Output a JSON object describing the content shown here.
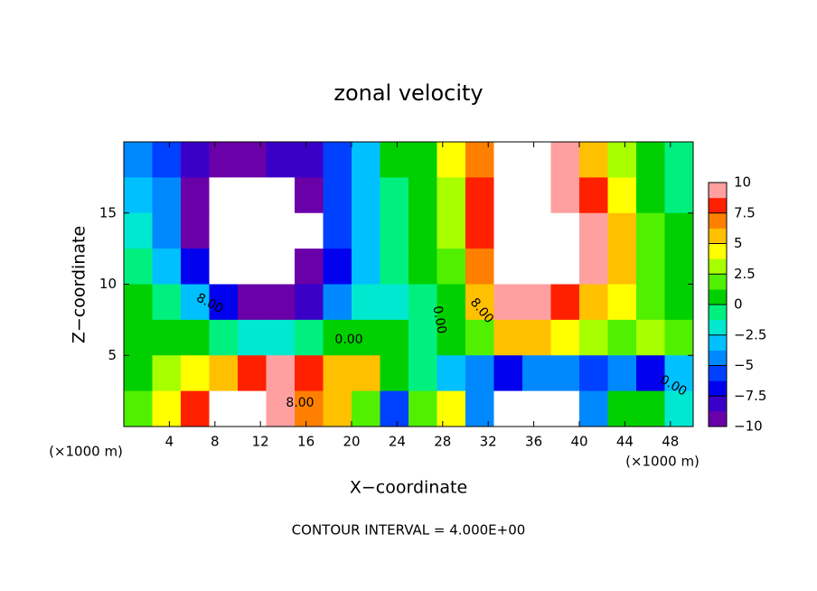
{
  "chart_data": {
    "type": "contour",
    "title": "zonal velocity",
    "x_label": "X−coordinate",
    "y_label": "Z−coordinate",
    "x_unit_left": "(×1000 m)",
    "x_unit_right": "(×1000 m)",
    "footer": "CONTOUR INTERVAL = 4.000E+00",
    "xlim": [
      0,
      50
    ],
    "ylim": [
      0,
      20
    ],
    "xticks": [
      4,
      8,
      12,
      16,
      20,
      24,
      28,
      32,
      36,
      40,
      44,
      48
    ],
    "yticks": [
      5,
      10,
      15
    ],
    "x": [
      1.25,
      3.75,
      6.25,
      8.75,
      11.25,
      13.75,
      16.25,
      18.75,
      21.25,
      23.75,
      26.25,
      28.75,
      31.25,
      33.75,
      36.25,
      38.75,
      41.25,
      43.75,
      46.25,
      48.75
    ],
    "y": [
      18.75,
      16.25,
      13.75,
      11.25,
      8.75,
      6.25,
      3.75,
      1.25
    ],
    "z": [
      [
        -4,
        -6,
        -8,
        -9,
        -9,
        -8,
        -8,
        -6,
        -3,
        0,
        1,
        4,
        7,
        11,
        11,
        9,
        6,
        3,
        1,
        -1
      ],
      [
        -3,
        -5,
        -9,
        -12,
        -12,
        -12,
        -9,
        -6,
        -3,
        -1,
        1,
        3,
        8,
        11,
        12,
        10,
        8,
        4,
        1,
        -1
      ],
      [
        -2,
        -4,
        -9,
        -12,
        -12,
        -12,
        -11,
        -6,
        -3,
        -1,
        1,
        3,
        8,
        12,
        12,
        11,
        9,
        5,
        2,
        0
      ],
      [
        -1,
        -3,
        -7,
        -11,
        -12,
        -11,
        -10,
        -7,
        -3,
        -1,
        0,
        2,
        7,
        11,
        12,
        11,
        9,
        6,
        2,
        0
      ],
      [
        0,
        -1,
        -3,
        -7,
        -9,
        -9,
        -8,
        -5,
        -2,
        -2,
        -1,
        1,
        6,
        9,
        9,
        8,
        6,
        4,
        2,
        1
      ],
      [
        1,
        1,
        1,
        -1,
        -2,
        -2,
        -1,
        0,
        1,
        0,
        -1,
        0,
        2,
        5,
        6,
        4,
        3,
        2,
        3,
        2
      ],
      [
        1,
        3,
        4,
        6,
        8,
        9,
        8,
        6,
        5,
        1,
        -1,
        -3,
        -5,
        -7,
        -5,
        -5,
        -6,
        -5,
        -7,
        -3
      ],
      [
        2,
        4,
        8,
        11,
        12,
        10,
        7,
        5,
        2,
        -6,
        2,
        4,
        -4,
        -12,
        -12,
        -12,
        -5,
        0,
        1,
        -2
      ]
    ],
    "clim": [
      -10,
      10
    ],
    "colors": [
      "#6a00a8",
      "#3a00c8",
      "#0000ee",
      "#0040ff",
      "#0088ff",
      "#00c0ff",
      "#00e8d0",
      "#00f080",
      "#00d000",
      "#50f000",
      "#a8ff00",
      "#ffff00",
      "#ffc000",
      "#ff8000",
      "#ff2000",
      "#ffa0a0"
    ],
    "colorbar_ticks": [
      10,
      7.5,
      5,
      2.5,
      0,
      {
        "value": -2.5,
        "label": "−2.5"
      },
      {
        "value": -5,
        "label": "−5"
      },
      {
        "value": -7.5,
        "label": "−7.5"
      },
      {
        "value": -10,
        "label": "−10"
      }
    ],
    "contour_labels": [
      "8.00",
      "0.00",
      "8.00",
      "0.00",
      "8.00",
      "0.00"
    ]
  }
}
